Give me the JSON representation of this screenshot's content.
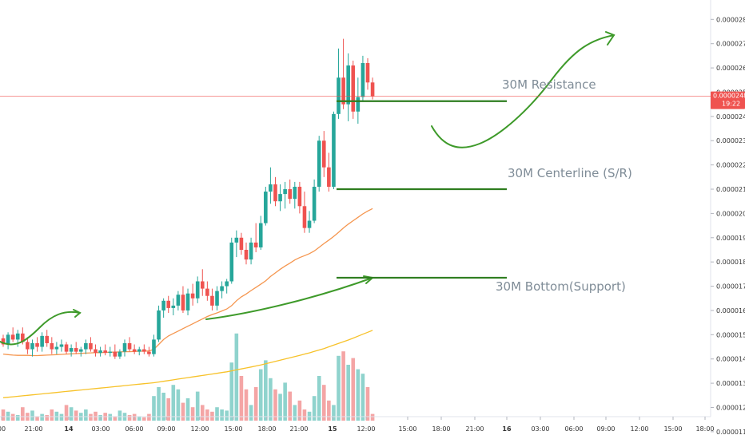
{
  "chart_data": {
    "type": "candlestick",
    "x_ticks": [
      "00",
      "21:00",
      "14",
      "03:00",
      "06:00",
      "09:00",
      "12:00",
      "15:00",
      "18:00",
      "21:00",
      "15",
      "12:00",
      "15:00",
      "18:00",
      "21:00",
      "16",
      "03:00",
      "06:00",
      "09:00",
      "12:00",
      "15:00",
      "18:00"
    ],
    "y_ticks": [
      "0.00001100",
      "0.00001200",
      "0.00001300",
      "0.00001400",
      "0.00001500",
      "0.00001600",
      "0.00001700",
      "0.00001800",
      "0.00001900",
      "0.00002000",
      "0.00002100",
      "0.00002200",
      "0.00002300",
      "0.00002400",
      "0.00002500",
      "0.00002600",
      "0.00002700",
      "0.00002800"
    ],
    "ylim": [
      1.07e-05,
      2.88e-05
    ],
    "current_price": {
      "value": "0.00002483",
      "countdown": "19:22"
    },
    "candles": [
      [
        1.485e-05,
        1.5e-05,
        1.45e-05,
        1.46e-05
      ],
      [
        1.46e-05,
        1.51e-05,
        1.44e-05,
        1.5e-05
      ],
      [
        1.5e-05,
        1.53e-05,
        1.47e-05,
        1.48e-05
      ],
      [
        1.48e-05,
        1.52e-05,
        1.45e-05,
        1.505e-05
      ],
      [
        1.505e-05,
        1.53e-05,
        1.46e-05,
        1.47e-05
      ],
      [
        1.47e-05,
        1.49e-05,
        1.42e-05,
        1.44e-05
      ],
      [
        1.44e-05,
        1.48e-05,
        1.41e-05,
        1.465e-05
      ],
      [
        1.465e-05,
        1.49e-05,
        1.43e-05,
        1.45e-05
      ],
      [
        1.45e-05,
        1.51e-05,
        1.43e-05,
        1.495e-05
      ],
      [
        1.495e-05,
        1.52e-05,
        1.45e-05,
        1.465e-05
      ],
      [
        1.465e-05,
        1.49e-05,
        1.42e-05,
        1.44e-05
      ],
      [
        1.44e-05,
        1.47e-05,
        1.42e-05,
        1.45e-05
      ],
      [
        1.45e-05,
        1.48e-05,
        1.43e-05,
        1.46e-05
      ],
      [
        1.46e-05,
        1.47e-05,
        1.42e-05,
        1.43e-05
      ],
      [
        1.43e-05,
        1.46e-05,
        1.41e-05,
        1.445e-05
      ],
      [
        1.445e-05,
        1.47e-05,
        1.42e-05,
        1.43e-05
      ],
      [
        1.43e-05,
        1.45e-05,
        1.41e-05,
        1.44e-05
      ],
      [
        1.44e-05,
        1.48e-05,
        1.42e-05,
        1.465e-05
      ],
      [
        1.465e-05,
        1.49e-05,
        1.43e-05,
        1.44e-05
      ],
      [
        1.44e-05,
        1.46e-05,
        1.41e-05,
        1.425e-05
      ],
      [
        1.425e-05,
        1.45e-05,
        1.41e-05,
        1.435e-05
      ],
      [
        1.435e-05,
        1.46e-05,
        1.415e-05,
        1.425e-05
      ],
      [
        1.425e-05,
        1.45e-05,
        1.41e-05,
        1.43e-05
      ],
      [
        1.43e-05,
        1.46e-05,
        1.4e-05,
        1.41e-05
      ],
      [
        1.41e-05,
        1.44e-05,
        1.4e-05,
        1.43e-05
      ],
      [
        1.43e-05,
        1.48e-05,
        1.41e-05,
        1.465e-05
      ],
      [
        1.465e-05,
        1.49e-05,
        1.43e-05,
        1.44e-05
      ],
      [
        1.44e-05,
        1.46e-05,
        1.42e-05,
        1.43e-05
      ],
      [
        1.43e-05,
        1.45e-05,
        1.415e-05,
        1.44e-05
      ],
      [
        1.44e-05,
        1.46e-05,
        1.42e-05,
        1.43e-05
      ],
      [
        1.43e-05,
        1.45e-05,
        1.41e-05,
        1.42e-05
      ],
      [
        1.42e-05,
        1.5e-05,
        1.41e-05,
        1.48e-05
      ],
      [
        1.48e-05,
        1.62e-05,
        1.47e-05,
        1.6e-05
      ],
      [
        1.6e-05,
        1.65e-05,
        1.57e-05,
        1.64e-05
      ],
      [
        1.64e-05,
        1.66e-05,
        1.59e-05,
        1.61e-05
      ],
      [
        1.61e-05,
        1.65e-05,
        1.58e-05,
        1.62e-05
      ],
      [
        1.62e-05,
        1.68e-05,
        1.6e-05,
        1.665e-05
      ],
      [
        1.665e-05,
        1.7e-05,
        1.59e-05,
        1.6e-05
      ],
      [
        1.6e-05,
        1.69e-05,
        1.58e-05,
        1.67e-05
      ],
      [
        1.67e-05,
        1.71e-05,
        1.62e-05,
        1.65e-05
      ],
      [
        1.65e-05,
        1.74e-05,
        1.63e-05,
        1.72e-05
      ],
      [
        1.72e-05,
        1.77e-05,
        1.66e-05,
        1.69e-05
      ],
      [
        1.69e-05,
        1.72e-05,
        1.64e-05,
        1.66e-05
      ],
      [
        1.66e-05,
        1.69e-05,
        1.6e-05,
        1.62e-05
      ],
      [
        1.62e-05,
        1.7e-05,
        1.6e-05,
        1.68e-05
      ],
      [
        1.68e-05,
        1.72e-05,
        1.65e-05,
        1.7e-05
      ],
      [
        1.7e-05,
        1.73e-05,
        1.67e-05,
        1.72e-05
      ],
      [
        1.72e-05,
        1.9e-05,
        1.71e-05,
        1.88e-05
      ],
      [
        1.88e-05,
        1.93e-05,
        1.82e-05,
        1.9e-05
      ],
      [
        1.9e-05,
        1.92e-05,
        1.83e-05,
        1.85e-05
      ],
      [
        1.85e-05,
        1.88e-05,
        1.79e-05,
        1.81e-05
      ],
      [
        1.81e-05,
        1.9e-05,
        1.79e-05,
        1.88e-05
      ],
      [
        1.88e-05,
        1.96e-05,
        1.84e-05,
        1.86e-05
      ],
      [
        1.86e-05,
        1.99e-05,
        1.85e-05,
        1.96e-05
      ],
      [
        1.96e-05,
        2.11e-05,
        1.95e-05,
        2.09e-05
      ],
      [
        2.09e-05,
        2.19e-05,
        2.04e-05,
        2.12e-05
      ],
      [
        2.12e-05,
        2.15e-05,
        2.03e-05,
        2.05e-05
      ],
      [
        2.05e-05,
        2.12e-05,
        2.01e-05,
        2.08e-05
      ],
      [
        2.08e-05,
        2.13e-05,
        2.02e-05,
        2.1e-05
      ],
      [
        2.1e-05,
        2.14e-05,
        2.04e-05,
        2.06e-05
      ],
      [
        2.06e-05,
        2.13e-05,
        2.02e-05,
        2.11e-05
      ],
      [
        2.11e-05,
        2.13e-05,
        2e-05,
        2.03e-05
      ],
      [
        2.03e-05,
        2.09e-05,
        1.92e-05,
        1.94e-05
      ],
      [
        1.94e-05,
        2.01e-05,
        1.92e-05,
        1.97e-05
      ],
      [
        1.97e-05,
        2.14e-05,
        1.96e-05,
        2.11e-05
      ],
      [
        2.11e-05,
        2.32e-05,
        2.09e-05,
        2.3e-05
      ],
      [
        2.3e-05,
        2.34e-05,
        2.15e-05,
        2.19e-05
      ],
      [
        2.19e-05,
        2.25e-05,
        2.09e-05,
        2.11e-05
      ],
      [
        2.11e-05,
        2.42e-05,
        2.1e-05,
        2.41e-05
      ],
      [
        2.41e-05,
        2.68e-05,
        2.39e-05,
        2.56e-05
      ],
      [
        2.56e-05,
        2.72e-05,
        2.43e-05,
        2.45e-05
      ],
      [
        2.45e-05,
        2.66e-05,
        2.38e-05,
        2.61e-05
      ],
      [
        2.61e-05,
        2.63e-05,
        2.39e-05,
        2.42e-05
      ],
      [
        2.42e-05,
        2.56e-05,
        2.37e-05,
        2.48e-05
      ],
      [
        2.48e-05,
        2.65e-05,
        2.46e-05,
        2.62e-05
      ],
      [
        2.62e-05,
        2.64e-05,
        2.51e-05,
        2.54e-05
      ],
      [
        2.54e-05,
        2.56e-05,
        2.47e-05,
        2.483e-05
      ]
    ],
    "volumes": [
      0.1,
      0.08,
      0.06,
      0.05,
      0.12,
      0.07,
      0.09,
      0.04,
      0.06,
      0.05,
      0.1,
      0.08,
      0.06,
      0.14,
      0.12,
      0.09,
      0.07,
      0.1,
      0.06,
      0.08,
      0.05,
      0.07,
      0.06,
      0.04,
      0.09,
      0.07,
      0.05,
      0.06,
      0.04,
      0.03,
      0.06,
      0.22,
      0.3,
      0.25,
      0.2,
      0.32,
      0.28,
      0.16,
      0.2,
      0.12,
      0.26,
      0.14,
      0.1,
      0.08,
      0.12,
      0.1,
      0.09,
      0.52,
      0.78,
      0.4,
      0.28,
      0.14,
      0.3,
      0.46,
      0.54,
      0.38,
      0.28,
      0.24,
      0.34,
      0.26,
      0.14,
      0.18,
      0.1,
      0.08,
      0.22,
      0.4,
      0.32,
      0.18,
      0.14,
      0.58,
      0.62,
      0.5,
      0.56,
      0.46,
      0.42,
      0.3,
      0.06
    ],
    "ma_orange": [
      1.42e-05,
      1.418e-05,
      1.416e-05,
      1.415e-05,
      1.415e-05,
      1.415e-05,
      1.414e-05,
      1.414e-05,
      1.415e-05,
      1.416e-05,
      1.417e-05,
      1.418e-05,
      1.419e-05,
      1.42e-05,
      1.421e-05,
      1.422e-05,
      1.423e-05,
      1.424e-05,
      1.425e-05,
      1.426e-05,
      1.426e-05,
      1.427e-05,
      1.428e-05,
      1.428e-05,
      1.429e-05,
      1.43e-05,
      1.43e-05,
      1.431e-05,
      1.432e-05,
      1.432e-05,
      1.433e-05,
      1.44e-05,
      1.46e-05,
      1.48e-05,
      1.495e-05,
      1.505e-05,
      1.515e-05,
      1.525e-05,
      1.535e-05,
      1.545e-05,
      1.555e-05,
      1.565e-05,
      1.575e-05,
      1.583e-05,
      1.59e-05,
      1.598e-05,
      1.606e-05,
      1.62e-05,
      1.64e-05,
      1.656e-05,
      1.668e-05,
      1.682e-05,
      1.695e-05,
      1.708e-05,
      1.722e-05,
      1.74e-05,
      1.755e-05,
      1.77e-05,
      1.783e-05,
      1.795e-05,
      1.808e-05,
      1.818e-05,
      1.826e-05,
      1.834e-05,
      1.845e-05,
      1.86e-05,
      1.876e-05,
      1.89e-05,
      1.905e-05,
      1.922e-05,
      1.94e-05,
      1.956e-05,
      1.97e-05,
      1.984e-05,
      1.998e-05,
      2.01e-05,
      2.02e-05
    ],
    "ma_yellow": [
      1.24e-05,
      1.242e-05,
      1.244e-05,
      1.246e-05,
      1.248e-05,
      1.25e-05,
      1.252e-05,
      1.254e-05,
      1.256e-05,
      1.258e-05,
      1.26e-05,
      1.262e-05,
      1.264e-05,
      1.266e-05,
      1.268e-05,
      1.27e-05,
      1.272e-05,
      1.274e-05,
      1.276e-05,
      1.278e-05,
      1.28e-05,
      1.282e-05,
      1.284e-05,
      1.286e-05,
      1.288e-05,
      1.29e-05,
      1.292e-05,
      1.294e-05,
      1.296e-05,
      1.298e-05,
      1.3e-05,
      1.302e-05,
      1.305e-05,
      1.308e-05,
      1.311e-05,
      1.314e-05,
      1.317e-05,
      1.32e-05,
      1.323e-05,
      1.326e-05,
      1.329e-05,
      1.332e-05,
      1.335e-05,
      1.338e-05,
      1.341e-05,
      1.344e-05,
      1.347e-05,
      1.351e-05,
      1.355e-05,
      1.359e-05,
      1.363e-05,
      1.367e-05,
      1.371e-05,
      1.375e-05,
      1.38e-05,
      1.385e-05,
      1.39e-05,
      1.395e-05,
      1.4e-05,
      1.405e-05,
      1.41e-05,
      1.415e-05,
      1.42e-05,
      1.425e-05,
      1.431e-05,
      1.437e-05,
      1.443e-05,
      1.45e-05,
      1.457e-05,
      1.464e-05,
      1.471e-05,
      1.478e-05,
      1.486e-05,
      1.494e-05,
      1.502e-05,
      1.51e-05,
      1.518e-05
    ],
    "annotations": [
      {
        "text": "30M Resistance",
        "anchor": "resistance-line"
      },
      {
        "text": "30M Centerline (S/R)",
        "anchor": "centerline-line"
      },
      {
        "text": "30M Bottom(Support)",
        "anchor": "support-line"
      }
    ],
    "levels": {
      "resistance": 2.463e-05,
      "centerline": 2.1e-05,
      "support": 1.735e-05
    },
    "colors": {
      "up": "#26a69a",
      "down": "#ef5350",
      "up_volume": "#8fd3cd",
      "down_volume": "#f4a5a5",
      "ma_orange": "#f5964f",
      "ma_yellow": "#f7c22a",
      "drawing": "#3e9a2a",
      "level": "#2e7d1f",
      "price_line": "#ef5350",
      "annotation": "#7f8c97"
    }
  }
}
